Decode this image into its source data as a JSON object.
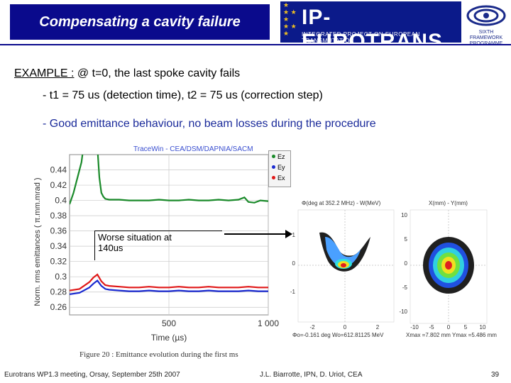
{
  "header": {
    "title": "Compensating a cavity failure",
    "logo_main": "IP-EUROTRANS",
    "logo_sub": "INTEGRATED PROJECT ON EUROPEAN TRANSMUTATION",
    "logo2_text": "SIXTH FRAMEWORK PROGRAMME"
  },
  "body": {
    "example_label": "EXAMPLE :",
    "example_text": " @ t=0, the last spoke cavity fails",
    "bullet1": "- t1 = 75 us (detection time), t2 = 75 us (correction step)",
    "bullet2": "- Good emittance behaviour, no beam losses during the procedure"
  },
  "annotation": {
    "line1": "Worse situation at",
    "line2": "140us"
  },
  "caption": "Figure 20 : Emittance evolution during the first ms",
  "phase_plots": {
    "left_title": "Φ(deg at 352.2 MHz) - W(MeV)",
    "right_title": "X(mm) - Y(mm)",
    "left_foot": "Φo=-0.161 deg  Wo=612.81125 MeV",
    "right_foot": "Xmax =7.802 mm  Ymax =5.486 mm",
    "left_y_ticks": [
      "1",
      "0",
      "-1"
    ],
    "left_x_ticks": [
      "-2",
      "0",
      "2"
    ],
    "right_y_ticks": [
      "10",
      "5",
      "0",
      "-5",
      "-10"
    ],
    "right_x_ticks": [
      "-10",
      "-5",
      "0",
      "5",
      "10"
    ]
  },
  "footer": {
    "left": "Eurotrans WP1.3 meeting, Orsay, September 25th 2007",
    "center": "J.L. Biarrotte, IPN, D. Uriot, CEA",
    "page": "39"
  },
  "colors": {
    "title_bg": "#0a0a8c",
    "ez": "#1a8a2a",
    "ey": "#1a2ad0",
    "ex": "#e01818"
  },
  "chart_data": {
    "type": "line",
    "title": "TraceWin - CEA/DSM/DAPNIA/SACM",
    "xlabel": "Time (µs)",
    "ylabel": "Norm. rms emittances ( π.mm.mrad )",
    "xlim": [
      0,
      1000
    ],
    "ylim": [
      0.25,
      0.46
    ],
    "x_ticks": [
      500,
      1000
    ],
    "x_tick_labels": [
      "500",
      "1 000"
    ],
    "y_ticks": [
      0.26,
      0.28,
      0.3,
      0.32,
      0.34,
      0.36,
      0.38,
      0.4,
      0.42,
      0.44
    ],
    "y_tick_labels": [
      "0.26",
      "0.28",
      "0.3",
      "0.32",
      "0.34",
      "0.36",
      "0.38",
      "0.4",
      "0.42",
      "0.44"
    ],
    "grid": true,
    "legend": "top-right",
    "series": [
      {
        "name": "Ez",
        "color": "#1a8a2a",
        "x": [
          0,
          20,
          40,
          60,
          70,
          80,
          140,
          150,
          160,
          170,
          180,
          200,
          250,
          300,
          350,
          400,
          450,
          500,
          550,
          600,
          650,
          700,
          750,
          800,
          850,
          880,
          900,
          930,
          960,
          1000
        ],
        "y": [
          0.395,
          0.41,
          0.43,
          0.45,
          0.47,
          0.47,
          0.47,
          0.43,
          0.41,
          0.405,
          0.402,
          0.401,
          0.401,
          0.4,
          0.4,
          0.4,
          0.401,
          0.4,
          0.4,
          0.401,
          0.4,
          0.4,
          0.401,
          0.4,
          0.401,
          0.404,
          0.398,
          0.397,
          0.4,
          0.399
        ]
      },
      {
        "name": "Ey",
        "color": "#1a2ad0",
        "x": [
          0,
          50,
          100,
          120,
          140,
          160,
          180,
          200,
          250,
          300,
          350,
          400,
          450,
          500,
          550,
          600,
          650,
          700,
          750,
          800,
          850,
          900,
          950,
          1000
        ],
        "y": [
          0.277,
          0.279,
          0.286,
          0.291,
          0.295,
          0.288,
          0.284,
          0.283,
          0.282,
          0.281,
          0.281,
          0.282,
          0.281,
          0.281,
          0.282,
          0.281,
          0.281,
          0.282,
          0.281,
          0.281,
          0.281,
          0.282,
          0.281,
          0.281
        ]
      },
      {
        "name": "Ex",
        "color": "#e01818",
        "x": [
          0,
          50,
          100,
          120,
          140,
          160,
          180,
          200,
          250,
          300,
          350,
          400,
          450,
          500,
          550,
          600,
          650,
          700,
          750,
          800,
          850,
          900,
          950,
          1000
        ],
        "y": [
          0.282,
          0.284,
          0.293,
          0.299,
          0.303,
          0.294,
          0.289,
          0.288,
          0.287,
          0.286,
          0.286,
          0.287,
          0.286,
          0.286,
          0.287,
          0.286,
          0.286,
          0.287,
          0.286,
          0.286,
          0.286,
          0.287,
          0.286,
          0.286
        ]
      }
    ]
  }
}
